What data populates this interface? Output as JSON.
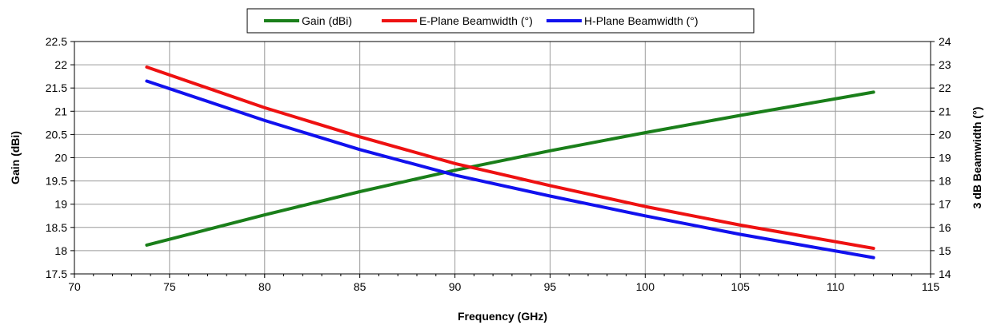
{
  "chart_data": {
    "type": "line",
    "title": "",
    "xlabel": "Frequency (GHz)",
    "ylabel": "Gain (dBi)",
    "y2label": "3 dB Beamwidth (°)",
    "xlim": [
      70,
      115
    ],
    "ylim": [
      17.5,
      22.5
    ],
    "y2lim": [
      14,
      24
    ],
    "x_ticks": [
      70,
      75,
      80,
      85,
      90,
      95,
      100,
      105,
      110,
      115
    ],
    "y_ticks": [
      17.5,
      18,
      18.5,
      19,
      19.5,
      20,
      20.5,
      21,
      21.5,
      22,
      22.5
    ],
    "y2_ticks": [
      14,
      15,
      16,
      17,
      18,
      19,
      20,
      21,
      22,
      23,
      24
    ],
    "grid": true,
    "legend_position": "top-center",
    "series": [
      {
        "name": "Gain (dBi)",
        "axis": "left",
        "color": "#1a7f1a",
        "x": [
          73.8,
          80,
          85,
          90,
          95,
          100,
          105,
          112
        ],
        "values": [
          18.12,
          18.77,
          19.27,
          19.73,
          20.15,
          20.54,
          20.91,
          21.41
        ]
      },
      {
        "name": "E-Plane Beamwidth (°)",
        "axis": "right",
        "color": "#ee1111",
        "x": [
          73.8,
          80,
          85,
          90,
          95,
          100,
          105,
          112
        ],
        "values": [
          22.9,
          21.15,
          19.9,
          18.75,
          17.8,
          16.9,
          16.1,
          15.1
        ]
      },
      {
        "name": "H-Plane Beamwidth (°)",
        "axis": "right",
        "color": "#1111ee",
        "x": [
          73.8,
          80,
          85,
          90,
          95,
          100,
          105,
          112
        ],
        "values": [
          22.3,
          20.6,
          19.35,
          18.25,
          17.35,
          16.5,
          15.7,
          14.7
        ]
      }
    ]
  }
}
